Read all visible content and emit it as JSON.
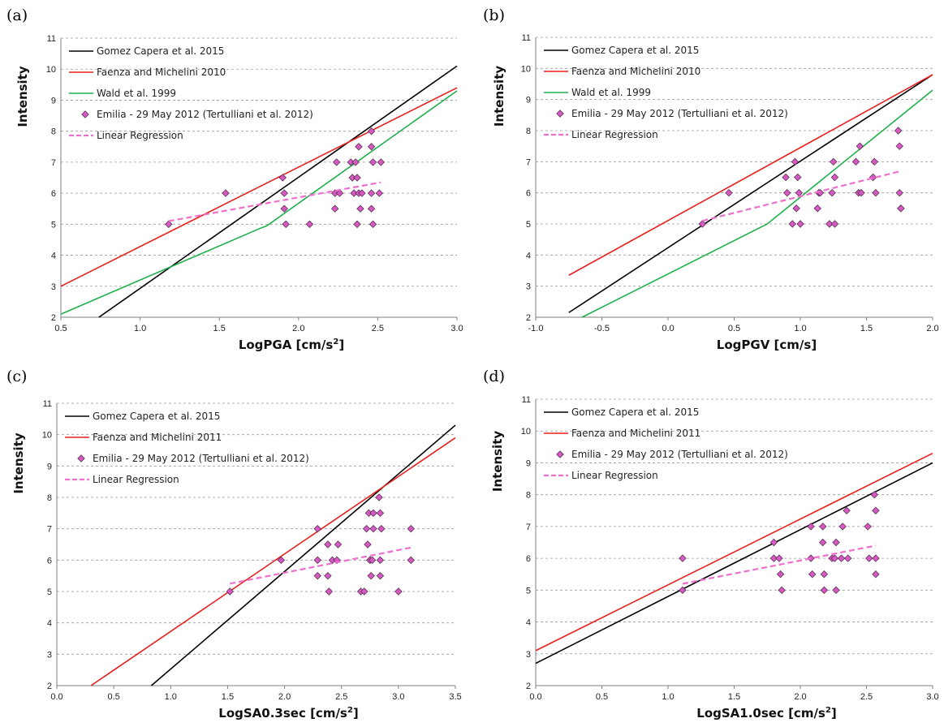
{
  "chart_data": [
    {
      "panel": "(a)",
      "type": "line",
      "xlabel": "LogPGA [cm/s²]",
      "ylabel": "Intensity",
      "xlim": [
        0.5,
        3.0
      ],
      "ylim": [
        2,
        11
      ],
      "xticks": [
        "0.5",
        "1.0",
        "1.5",
        "2.0",
        "2.5",
        "3.0"
      ],
      "yticks": [
        "2",
        "3",
        "4",
        "5",
        "6",
        "7",
        "8",
        "9",
        "10",
        "11"
      ],
      "grid": "horizontal dashed",
      "legend_position": "top-left",
      "series": [
        {
          "name": "Gomez Capera et al. 2015",
          "kind": "line",
          "color": "#000000",
          "x": [
            0.74,
            3.0
          ],
          "y": [
            2.0,
            10.1
          ]
        },
        {
          "name": "Faenza and Michelini 2010",
          "kind": "line",
          "color": "#e8201c",
          "x": [
            0.5,
            3.0
          ],
          "y": [
            3.0,
            9.4
          ]
        },
        {
          "name": "Wald et al. 1999",
          "kind": "line",
          "color": "#1db14b",
          "x": [
            0.5,
            1.75,
            1.8,
            3.0
          ],
          "y": [
            2.1,
            4.85,
            4.95,
            9.3
          ]
        },
        {
          "name": "Emilia - 29 May 2012 (Tertulliani et al. 2012)",
          "kind": "scatter",
          "color": "#d658c2",
          "x": [
            1.18,
            1.54,
            1.9,
            1.91,
            1.91,
            1.92,
            2.07,
            2.23,
            2.23,
            2.24,
            2.26,
            2.33,
            2.34,
            2.35,
            2.36,
            2.37,
            2.37,
            2.38,
            2.38,
            2.39,
            2.4,
            2.46,
            2.46,
            2.46,
            2.46,
            2.47,
            2.47,
            2.51,
            2.52
          ],
          "y": [
            5,
            6,
            6.5,
            6,
            5.5,
            5,
            5,
            6,
            5.5,
            7,
            6,
            7,
            6.5,
            6,
            7,
            6.5,
            5,
            6,
            7.5,
            5.5,
            6,
            8,
            7.5,
            6,
            5.5,
            5,
            7,
            6,
            7
          ]
        },
        {
          "name": "Linear Regression",
          "kind": "dashed",
          "color": "#ee6fcd",
          "x": [
            1.18,
            2.52
          ],
          "y": [
            5.1,
            6.35
          ]
        }
      ]
    },
    {
      "panel": "(b)",
      "type": "line",
      "xlabel": "LogPGV [cm/s]",
      "ylabel": "Intensity",
      "xlim": [
        -1.0,
        2.0
      ],
      "ylim": [
        2,
        11
      ],
      "xticks": [
        "-1.0",
        "-0.5",
        "0.0",
        "0.5",
        "1.0",
        "1.5",
        "2.0"
      ],
      "yticks": [
        "2",
        "3",
        "4",
        "5",
        "6",
        "7",
        "8",
        "9",
        "10",
        "11"
      ],
      "grid": "horizontal dashed",
      "legend_position": "top-left",
      "series": [
        {
          "name": "Gomez Capera et al. 2015",
          "kind": "line",
          "color": "#000000",
          "x": [
            -0.75,
            2.0
          ],
          "y": [
            2.15,
            9.8
          ]
        },
        {
          "name": "Faenza and Michelini 2010",
          "kind": "line",
          "color": "#e8201c",
          "x": [
            -0.75,
            2.0
          ],
          "y": [
            3.35,
            9.8
          ]
        },
        {
          "name": "Wald et al. 1999",
          "kind": "line",
          "color": "#1db14b",
          "x": [
            -0.65,
            0.75,
            2.0
          ],
          "y": [
            2.0,
            5.0,
            9.3
          ]
        },
        {
          "name": "Emilia - 29 May 2012 (Tertulliani et al. 2012)",
          "kind": "scatter",
          "color": "#d658c2",
          "x": [
            0.26,
            0.46,
            0.89,
            0.9,
            0.94,
            0.96,
            0.97,
            0.98,
            0.99,
            1.0,
            1.13,
            1.14,
            1.15,
            1.22,
            1.24,
            1.25,
            1.26,
            1.26,
            1.42,
            1.44,
            1.45,
            1.46,
            1.55,
            1.56,
            1.57,
            1.74,
            1.75,
            1.75,
            1.76,
            1.76
          ],
          "y": [
            5,
            6,
            6.5,
            6,
            5,
            7,
            5.5,
            6.5,
            6,
            5,
            5.5,
            6,
            6,
            5,
            6,
            7,
            6.5,
            5,
            7,
            6,
            7.5,
            6,
            6.5,
            7,
            6,
            8,
            7.5,
            6,
            5.5,
            5.5
          ]
        },
        {
          "name": "Linear Regression",
          "kind": "dashed",
          "color": "#ee6fcd",
          "x": [
            0.26,
            1.76
          ],
          "y": [
            5.1,
            6.7
          ]
        }
      ]
    },
    {
      "panel": "(c)",
      "type": "line",
      "xlabel": "LogSA0.3sec [cm/s²]",
      "ylabel": "Intensity",
      "xlim": [
        0.0,
        3.5
      ],
      "ylim": [
        2,
        11
      ],
      "xticks": [
        "0.0",
        "0.5",
        "1.0",
        "1.5",
        "2.0",
        "2.5",
        "3.0",
        "3.5"
      ],
      "yticks": [
        "2",
        "3",
        "4",
        "5",
        "6",
        "7",
        "8",
        "9",
        "10",
        "11"
      ],
      "grid": "horizontal dashed",
      "legend_position": "top-left",
      "series": [
        {
          "name": "Gomez Capera et al. 2015",
          "kind": "line",
          "color": "#000000",
          "x": [
            0.83,
            3.5
          ],
          "y": [
            2.0,
            10.3
          ]
        },
        {
          "name": "Faenza and Michelini 2011",
          "kind": "line",
          "color": "#e8201c",
          "x": [
            0.3,
            3.5
          ],
          "y": [
            2.0,
            9.9
          ]
        },
        {
          "name": "Emilia - 29 May 2012 (Tertulliani et al. 2012)",
          "kind": "scatter",
          "color": "#d658c2",
          "x": [
            1.52,
            1.97,
            2.29,
            2.29,
            2.29,
            2.38,
            2.38,
            2.39,
            2.42,
            2.46,
            2.47,
            2.67,
            2.7,
            2.72,
            2.73,
            2.74,
            2.75,
            2.75,
            2.76,
            2.77,
            2.78,
            2.78,
            2.83,
            2.84,
            2.84,
            2.84,
            2.85,
            3.0,
            3.11,
            3.11
          ],
          "y": [
            5,
            6,
            7,
            6,
            5.5,
            6.5,
            5.5,
            5,
            6,
            6,
            6.5,
            5,
            5,
            7,
            6.5,
            7.5,
            6,
            6,
            5.5,
            6,
            7.5,
            7,
            8,
            7.5,
            6,
            5.5,
            7,
            5,
            7,
            6
          ]
        },
        {
          "name": "Linear Regression",
          "kind": "dashed",
          "color": "#ee6fcd",
          "x": [
            1.52,
            3.11
          ],
          "y": [
            5.25,
            6.4
          ]
        }
      ]
    },
    {
      "panel": "(d)",
      "type": "line",
      "xlabel": "LogSA1.0sec [cm/s²]",
      "ylabel": "Intensity",
      "xlim": [
        0.0,
        3.0
      ],
      "ylim": [
        2,
        11
      ],
      "xticks": [
        "0.0",
        "0.5",
        "1.0",
        "1.5",
        "2.0",
        "2.5",
        "3.0"
      ],
      "yticks": [
        "2",
        "3",
        "4",
        "5",
        "6",
        "7",
        "8",
        "9",
        "10",
        "11"
      ],
      "grid": "horizontal dashed",
      "legend_position": "top-left",
      "series": [
        {
          "name": "Gomez Capera et al. 2015",
          "kind": "line",
          "color": "#000000",
          "x": [
            0.0,
            3.0
          ],
          "y": [
            2.7,
            9.0
          ]
        },
        {
          "name": "Faenza and Michelini 2011",
          "kind": "line",
          "color": "#e8201c",
          "x": [
            0.0,
            3.0
          ],
          "y": [
            3.1,
            9.3
          ]
        },
        {
          "name": "Emilia - 29 May 2012 (Tertulliani et al. 2012)",
          "kind": "scatter",
          "color": "#d658c2",
          "x": [
            1.11,
            1.11,
            1.8,
            1.8,
            1.84,
            1.85,
            1.86,
            2.08,
            2.08,
            2.09,
            2.17,
            2.17,
            2.18,
            2.18,
            2.24,
            2.26,
            2.27,
            2.27,
            2.31,
            2.32,
            2.35,
            2.36,
            2.51,
            2.52,
            2.56,
            2.57,
            2.57,
            2.57
          ],
          "y": [
            6,
            5,
            6.5,
            6,
            6,
            5.5,
            5,
            7,
            6,
            5.5,
            7,
            6.5,
            5.5,
            5,
            6,
            6,
            5,
            6.5,
            6,
            7,
            7.5,
            6,
            7,
            6,
            8,
            7.5,
            6,
            5.5
          ]
        },
        {
          "name": "Linear Regression",
          "kind": "dashed",
          "color": "#ee6fcd",
          "x": [
            1.11,
            2.57
          ],
          "y": [
            5.2,
            6.4
          ]
        }
      ]
    }
  ]
}
